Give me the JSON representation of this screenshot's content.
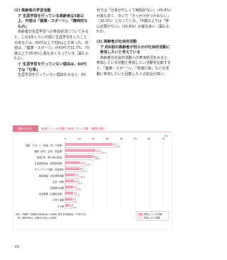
{
  "document": {
    "left": [
      "(2) 高齢者の学習活動",
      "ア 生涯学習を行っている高齢者は5割以上、内容は「健康・スポーツ」、「趣味的なもの」",
      "高齢者の生涯学習への参加状況についてみると、この1年くらいの間に生涯学習をしたことのある人は、60代以上で5割以上であった。内容は、「健康・スポーツ」が60代で31.7%、70歳以上で28.8%と最も多くなっている（図1-2-5-1）。",
      "イ 生涯学習を行っていない理由は、60代では「仕事」",
      "生涯学習を行っていない理由をみると、60"
    ],
    "right": [
      "代では「仕事が忙しくて時間がない」（45.8%）が最も多く、次いで「きっかけがつかめない」（30.0%）となっている。70歳以上では「特に必要がない」（19.8%）が最も多い（図1-2-5-5）。",
      "(3) 高齢者の社会的活動",
      "ア 約6割の高齢者が何らかの社会的活動に参加したいと考えている",
      "高齢者の社会的活動への参加状況をみると、参加している活動と参加したい活動を比較すると、「健康・スポーツ」、「地域行事」などの活動に参加したいと回答した人の割合が高い。"
    ],
    "page_number": "38"
  },
  "chart_data": {
    "type": "hbar",
    "figure_label": "図1-2-5-2",
    "title": "参加している活動と参加したい活動（複数回答）",
    "categories": [
      "健康・スポーツ（体操、歩こう会等）",
      "趣味（俳句、詩吟、陶芸等）",
      "地域行事（祭り等の世話）",
      "生活環境改善（環境美化等）",
      "ボランティア活動・社会奉仕",
      "教育関連・文化啓発活動",
      "生産・就業",
      "高齢者の支援",
      "安全管理（交通安全等）",
      "子育て支援",
      "その他"
    ],
    "series": [
      {
        "name": "参加している活動",
        "color": "#f2a7b8",
        "values": [
          33.7,
          21.4,
          19.4,
          10.4,
          9.9,
          6.6,
          6.3,
          5.5,
          5.4,
          4.8,
          2.8
        ]
      },
      {
        "name": "参加したい活動",
        "color": "#ffffff",
        "values": [
          35.5,
          25.6,
          20.8,
          14.5,
          12.1,
          10.4,
          9.3,
          8.4,
          7.2,
          6.1,
          4.9
        ]
      }
    ],
    "xlim": [
      0,
      70
    ],
    "xticks": [
      0,
      10,
      20,
      30,
      40,
      50,
      60,
      70
    ],
    "x_unit": "(%)",
    "notes": [
      "資料：内閣府「高齢者の地域社会への参加に関する意識調査」（平成25年）",
      "（注）調査対象は、全国の60歳以上の男女"
    ],
    "grid": true
  }
}
